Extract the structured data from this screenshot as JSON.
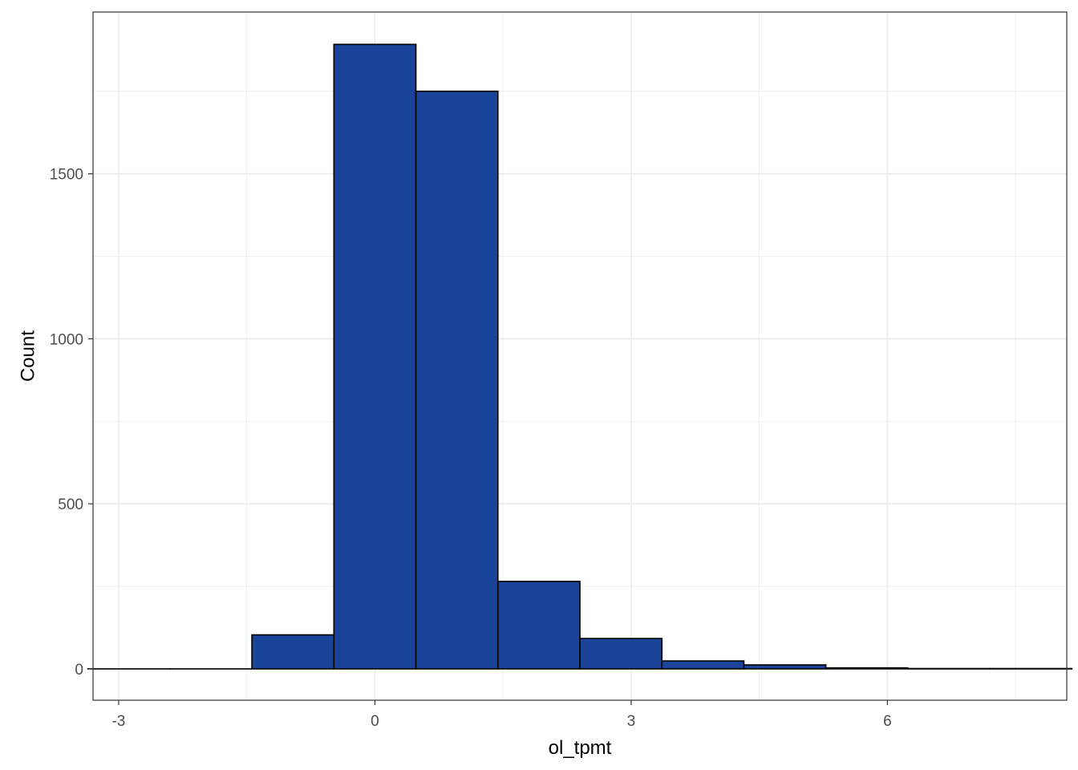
{
  "chart_data": {
    "type": "bar",
    "subtype": "histogram",
    "title": "",
    "xlabel": "ol_tpmt",
    "ylabel": "Count",
    "xlim": [
      -3.3,
      8.1
    ],
    "ylim": [
      -95,
      1990
    ],
    "x_ticks": [
      -3,
      0,
      3,
      6
    ],
    "x_tick_labels": [
      "-3",
      "0",
      "3",
      "6"
    ],
    "x_minor_ticks": [
      -1.5,
      1.5,
      4.5,
      7.5
    ],
    "y_ticks": [
      0,
      500,
      1000,
      1500
    ],
    "y_tick_labels": [
      "0",
      "500",
      "1000",
      "1500"
    ],
    "y_minor_ticks": [
      250,
      750,
      1250,
      1750
    ],
    "bin_width": 0.96,
    "bins": [
      {
        "x_start": -3.36,
        "x_end": -2.4,
        "count": 0
      },
      {
        "x_start": -2.4,
        "x_end": -1.44,
        "count": 0
      },
      {
        "x_start": -1.44,
        "x_end": -0.48,
        "count": 103
      },
      {
        "x_start": -0.48,
        "x_end": 0.48,
        "count": 1892
      },
      {
        "x_start": 0.48,
        "x_end": 1.44,
        "count": 1750
      },
      {
        "x_start": 1.44,
        "x_end": 2.4,
        "count": 265
      },
      {
        "x_start": 2.4,
        "x_end": 3.36,
        "count": 92
      },
      {
        "x_start": 3.36,
        "x_end": 4.32,
        "count": 24
      },
      {
        "x_start": 4.32,
        "x_end": 5.28,
        "count": 12
      },
      {
        "x_start": 5.28,
        "x_end": 6.24,
        "count": 3
      },
      {
        "x_start": 6.24,
        "x_end": 7.2,
        "count": 1
      },
      {
        "x_start": 7.2,
        "x_end": 8.16,
        "count": 1
      }
    ],
    "grid": true,
    "legend": "none",
    "colors": {
      "bar_fill": "#1a4499",
      "bar_stroke": "#000000",
      "grid": "#ebebeb",
      "panel_border": "#333333",
      "tick_text": "#4d4d4d"
    }
  }
}
